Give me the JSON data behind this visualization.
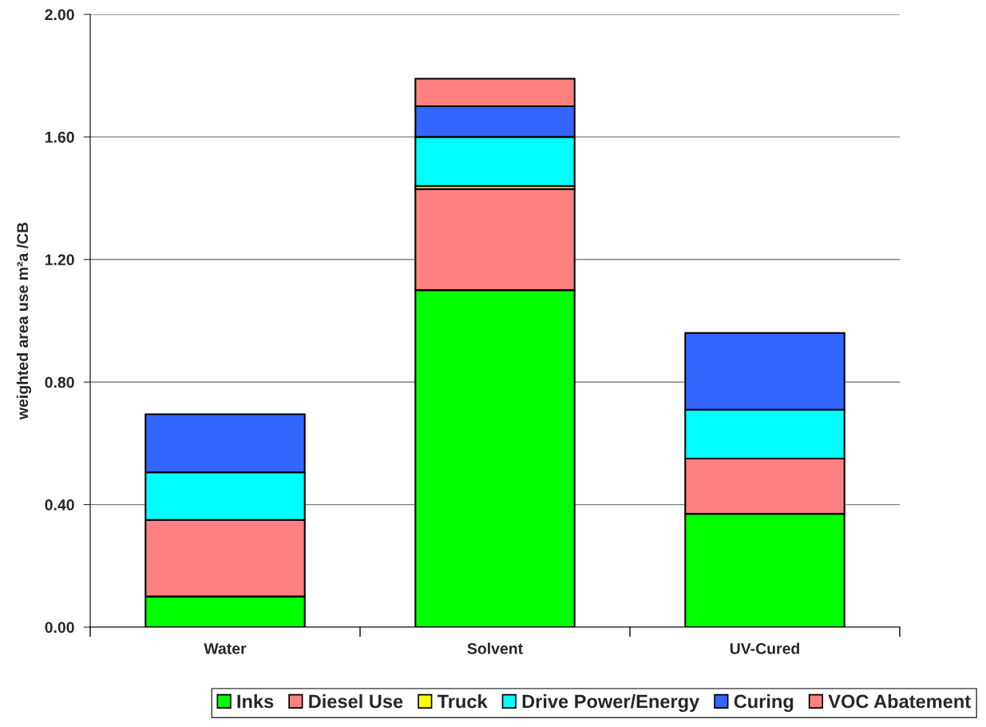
{
  "chart_data": {
    "type": "bar",
    "stacked": true,
    "ylabel": "weighted area use m²a /CB",
    "categories": [
      "Water",
      "Solvent",
      "UV-Cured"
    ],
    "series": [
      {
        "name": "Inks",
        "color": "#00ff00",
        "values": [
          0.1,
          1.1,
          0.37
        ]
      },
      {
        "name": "Diesel Use",
        "color": "#ff8080",
        "values": [
          0.25,
          0.33,
          0.18
        ]
      },
      {
        "name": "Truck",
        "color": "#ffff00",
        "values": [
          null,
          0.01,
          null
        ]
      },
      {
        "name": "Drive Power/Energy",
        "color": "#00ffff",
        "values": [
          0.155,
          0.16,
          0.16
        ]
      },
      {
        "name": "Curing",
        "color": "#3366ff",
        "values": [
          0.19,
          0.1,
          0.25
        ]
      },
      {
        "name": "VOC Abatement",
        "color": "#ff8080",
        "values": [
          null,
          0.09,
          null
        ]
      }
    ],
    "ylim": [
      0,
      2.0
    ],
    "yticks": [
      {
        "value": 0,
        "label": "0.00"
      },
      {
        "value": 0.4,
        "label": "0.40"
      },
      {
        "value": 0.8,
        "label": "0.80"
      },
      {
        "value": 1.2,
        "label": "1.20"
      },
      {
        "value": 1.6,
        "label": "1.60"
      },
      {
        "value": 2.0,
        "label": "2.00"
      }
    ],
    "grid": "y",
    "legend": "bottom"
  }
}
